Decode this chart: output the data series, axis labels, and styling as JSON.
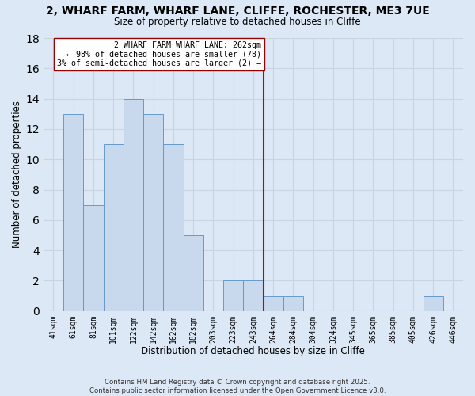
{
  "title_line1": "2, WHARF FARM, WHARF LANE, CLIFFE, ROCHESTER, ME3 7UE",
  "title_line2": "Size of property relative to detached houses in Cliffe",
  "xlabel": "Distribution of detached houses by size in Cliffe",
  "ylabel": "Number of detached properties",
  "bar_labels": [
    "41sqm",
    "61sqm",
    "81sqm",
    "101sqm",
    "122sqm",
    "142sqm",
    "162sqm",
    "182sqm",
    "203sqm",
    "223sqm",
    "243sqm",
    "264sqm",
    "284sqm",
    "304sqm",
    "324sqm",
    "345sqm",
    "365sqm",
    "385sqm",
    "405sqm",
    "426sqm",
    "446sqm"
  ],
  "bar_values": [
    0,
    13,
    7,
    11,
    14,
    13,
    11,
    5,
    0,
    2,
    2,
    1,
    1,
    0,
    0,
    0,
    0,
    0,
    0,
    1,
    0
  ],
  "bar_color": "#c8d9ed",
  "bar_edge_color": "#6699cc",
  "vline_x_index": 11,
  "vline_color": "#cc0000",
  "annotation_title": "2 WHARF FARM WHARF LANE: 262sqm",
  "annotation_line2": "← 98% of detached houses are smaller (78)",
  "annotation_line3": "3% of semi-detached houses are larger (2) →",
  "ylim": [
    0,
    18
  ],
  "yticks": [
    0,
    2,
    4,
    6,
    8,
    10,
    12,
    14,
    16,
    18
  ],
  "bg_color": "#dce8f5",
  "grid_color": "#c8d4e0",
  "footer_line1": "Contains HM Land Registry data © Crown copyright and database right 2025.",
  "footer_line2": "Contains public sector information licensed under the Open Government Licence v3.0."
}
